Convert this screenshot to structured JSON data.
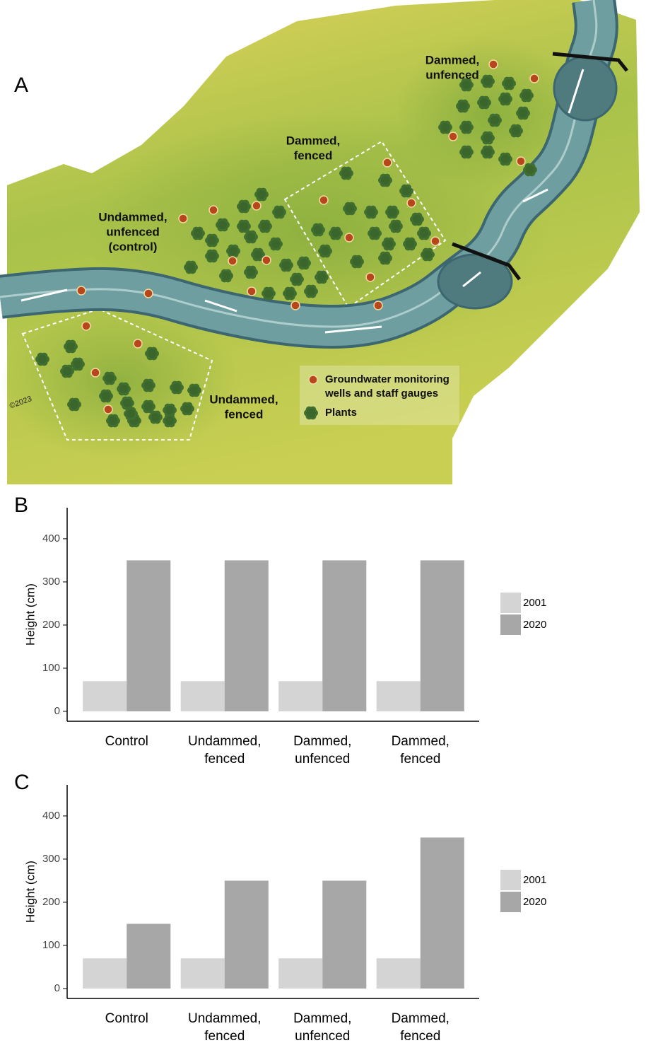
{
  "illustration": {
    "panel_label": "A",
    "regions": [
      {
        "label_lines": [
          "Dammed,",
          "unfenced"
        ]
      },
      {
        "label_lines": [
          "Dammed,",
          "fenced"
        ]
      },
      {
        "label_lines": [
          "Undammed,",
          "unfenced",
          "(control)"
        ]
      },
      {
        "label_lines": [
          "Undammed,",
          "fenced"
        ]
      }
    ],
    "legend": {
      "wells_lines": [
        "Groundwater monitoring",
        "wells and staff gauges"
      ],
      "plants": "Plants"
    },
    "signature": "©2023"
  },
  "chart_data": [
    {
      "type": "bar",
      "panel_label": "B",
      "y_label": "Height (cm)",
      "categories": [
        "Control",
        "Undammed, fenced",
        "Dammed, unfenced",
        "Dammed, fenced"
      ],
      "series": [
        {
          "name": "2001",
          "color": "#d4d4d4",
          "values": [
            70,
            70,
            70,
            70
          ]
        },
        {
          "name": "2020",
          "color": "#a7a7a7",
          "values": [
            350,
            350,
            350,
            350
          ]
        }
      ],
      "ylim": [
        -23,
        472
      ],
      "yticks": [
        0,
        100,
        200,
        300,
        400
      ]
    },
    {
      "type": "bar",
      "panel_label": "C",
      "y_label": "Height (cm)",
      "categories": [
        "Control",
        "Undammed, fenced",
        "Dammed, unfenced",
        "Dammed, fenced"
      ],
      "series": [
        {
          "name": "2001",
          "color": "#d4d4d4",
          "values": [
            70,
            70,
            70,
            70
          ]
        },
        {
          "name": "2020",
          "color": "#a7a7a7",
          "values": [
            150,
            250,
            250,
            350
          ]
        }
      ],
      "ylim": [
        -23,
        472
      ],
      "yticks": [
        0,
        100,
        200,
        300,
        400
      ]
    }
  ]
}
